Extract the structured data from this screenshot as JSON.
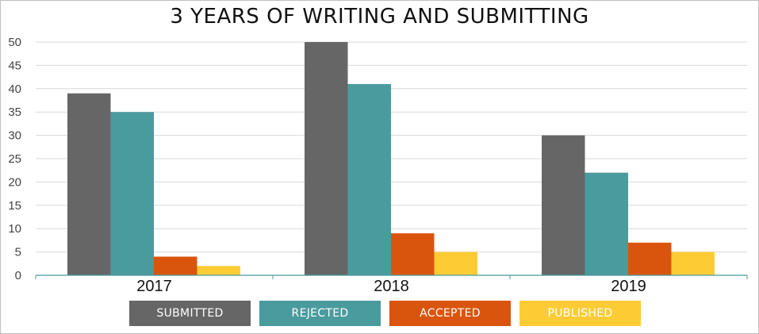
{
  "chart_data": {
    "type": "bar",
    "title": "3 YEARS OF WRITING AND SUBMITTING",
    "categories": [
      "2017",
      "2018",
      "2019"
    ],
    "series": [
      {
        "name": "SUBMITTED",
        "color": "#666666",
        "values": [
          39,
          50,
          30
        ]
      },
      {
        "name": "REJECTED",
        "color": "#4a9b9e",
        "values": [
          35,
          41,
          22
        ]
      },
      {
        "name": "ACCEPTED",
        "color": "#d9550d",
        "values": [
          4,
          9,
          7
        ]
      },
      {
        "name": "PUBLISHED",
        "color": "#fdcc35",
        "values": [
          2,
          5,
          5
        ]
      }
    ],
    "ylim": [
      0,
      50
    ],
    "yticks": [
      "0",
      "5",
      "10",
      "15",
      "20",
      "25",
      "30",
      "35",
      "40",
      "45",
      "50"
    ],
    "grid": true,
    "legend_position": "bottom"
  }
}
